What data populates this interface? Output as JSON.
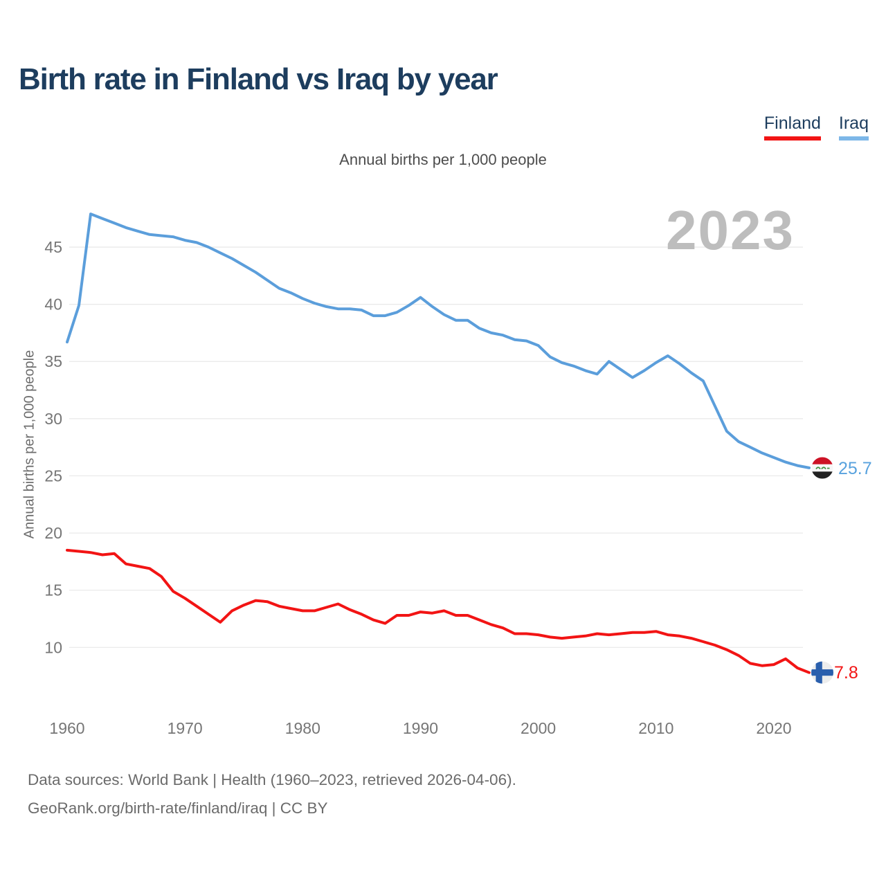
{
  "header": {
    "title": "Birth rate in Finland vs Iraq by year"
  },
  "legend": {
    "items": [
      {
        "label": "Finland",
        "color": "#f21414"
      },
      {
        "label": "Iraq",
        "color": "#7db7e8"
      }
    ]
  },
  "subtitle": "Annual births per 1,000 people",
  "watermark": "2023",
  "y_axis_title": "Annual births per 1,000 people",
  "end_labels": [
    {
      "series": "Iraq",
      "value": "25.7",
      "color": "#58a2de",
      "flag": "iraq-flag"
    },
    {
      "series": "Finland",
      "value": "7.8",
      "color": "#f21414",
      "flag": "finland-flag"
    }
  ],
  "footer": {
    "line1": "Data sources: World Bank | Health (1960–2023, retrieved 2026-04-06).",
    "line2": "GeoRank.org/birth-rate/finland/iraq | CC BY"
  },
  "chart_data": {
    "type": "line",
    "title": "Birth rate in Finland vs Iraq by year",
    "subtitle": "Annual births per 1,000 people",
    "ylabel": "Annual births per 1,000 people",
    "xlim": [
      1960,
      2023
    ],
    "ylim": [
      4.3,
      48.8
    ],
    "grid": true,
    "legend_position": "top-right",
    "yticks": [
      10,
      15,
      20,
      25,
      30,
      35,
      40,
      45
    ],
    "xticks": [
      1960,
      1970,
      1980,
      1990,
      2000,
      2010,
      2020
    ],
    "x": [
      1960,
      1961,
      1962,
      1963,
      1964,
      1965,
      1966,
      1967,
      1968,
      1969,
      1970,
      1971,
      1972,
      1973,
      1974,
      1975,
      1976,
      1977,
      1978,
      1979,
      1980,
      1981,
      1982,
      1983,
      1984,
      1985,
      1986,
      1987,
      1988,
      1989,
      1990,
      1991,
      1992,
      1993,
      1994,
      1995,
      1996,
      1997,
      1998,
      1999,
      2000,
      2001,
      2002,
      2003,
      2004,
      2005,
      2006,
      2007,
      2008,
      2009,
      2010,
      2011,
      2012,
      2013,
      2014,
      2015,
      2016,
      2017,
      2018,
      2019,
      2020,
      2021,
      2022,
      2023
    ],
    "series": [
      {
        "name": "Finland",
        "color": "#f21414",
        "last_value": 7.8,
        "values": [
          18.5,
          18.4,
          18.3,
          18.1,
          18.2,
          17.3,
          17.1,
          16.9,
          16.2,
          14.9,
          14.3,
          13.6,
          12.9,
          12.2,
          13.2,
          13.7,
          14.1,
          14.0,
          13.6,
          13.4,
          13.2,
          13.2,
          13.5,
          13.8,
          13.3,
          12.9,
          12.4,
          12.1,
          12.8,
          12.8,
          13.1,
          13.0,
          13.2,
          12.8,
          12.8,
          12.4,
          12.0,
          11.7,
          11.2,
          11.2,
          11.1,
          10.9,
          10.8,
          10.9,
          11.0,
          11.2,
          11.1,
          11.2,
          11.3,
          11.3,
          11.4,
          11.1,
          11.0,
          10.8,
          10.5,
          10.2,
          9.8,
          9.3,
          8.6,
          8.4,
          8.5,
          9.0,
          8.2,
          7.8
        ]
      },
      {
        "name": "Iraq",
        "color": "#5b9edb",
        "last_value": 25.7,
        "values": [
          36.7,
          39.9,
          47.9,
          47.5,
          47.1,
          46.7,
          46.4,
          46.1,
          46.0,
          45.9,
          45.6,
          45.4,
          45.0,
          44.5,
          44.0,
          43.4,
          42.8,
          42.1,
          41.4,
          41.0,
          40.5,
          40.1,
          39.8,
          39.6,
          39.6,
          39.5,
          39.0,
          39.0,
          39.3,
          39.9,
          40.6,
          39.8,
          39.1,
          38.6,
          38.6,
          37.9,
          37.5,
          37.3,
          36.9,
          36.8,
          36.4,
          35.4,
          34.9,
          34.6,
          34.2,
          33.9,
          35.0,
          34.3,
          33.6,
          34.2,
          34.9,
          35.5,
          34.8,
          34.0,
          33.3,
          31.1,
          28.9,
          28.0,
          27.5,
          27.0,
          26.6,
          26.2,
          25.9,
          25.7
        ]
      }
    ]
  }
}
